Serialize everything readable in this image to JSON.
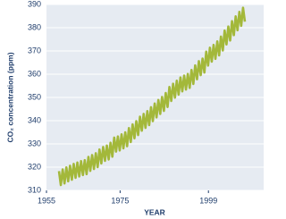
{
  "chart_data": {
    "type": "line",
    "x_label": "YEAR",
    "y_label": "CO₂ concentration (ppm)",
    "x": [
      1958.4,
      1958.9,
      1959.4,
      1959.9,
      1960.4,
      1960.9,
      1961.4,
      1961.9,
      1962.4,
      1962.9,
      1963.4,
      1963.9,
      1964.4,
      1964.9,
      1965.4,
      1965.9,
      1966.4,
      1966.9,
      1967.4,
      1967.9,
      1968.4,
      1968.9,
      1969.4,
      1969.9,
      1970.4,
      1970.9,
      1971.4,
      1971.9,
      1972.4,
      1972.9,
      1973.4,
      1973.9,
      1974.4,
      1974.9,
      1975.4,
      1975.9,
      1976.4,
      1976.9,
      1977.4,
      1977.9,
      1978.4,
      1978.9,
      1979.4,
      1979.9,
      1980.4,
      1980.9,
      1981.4,
      1981.9,
      1982.4,
      1982.9,
      1983.4,
      1983.9,
      1984.4,
      1984.9,
      1985.4,
      1985.9,
      1986.4,
      1986.9,
      1987.4,
      1987.9,
      1988.4,
      1988.9,
      1989.4,
      1989.9,
      1990.4,
      1990.9,
      1991.4,
      1991.9,
      1992.4,
      1992.9,
      1993.4,
      1993.9,
      1994.4,
      1994.9,
      1995.4,
      1995.9,
      1996.4,
      1996.9,
      1997.4,
      1997.9,
      1998.4,
      1998.9,
      1999.4,
      1999.9,
      2000.4,
      2000.9,
      2001.4,
      2001.9,
      2002.4,
      2002.9,
      2003.4,
      2003.9,
      2004.4,
      2004.9,
      2005.4,
      2005.9,
      2006.4,
      2006.9,
      2007.4,
      2007.9,
      2008.4,
      2008.9
    ],
    "series": [
      {
        "name": "CO₂",
        "color": "#a3b83a",
        "values": [
          318.3,
          312.3,
          319,
          313,
          319.9,
          313.9,
          320.6,
          314.6,
          321.4,
          315.4,
          322,
          316,
          322.6,
          316.6,
          323,
          317,
          324.4,
          318.4,
          325.2,
          319.2,
          326,
          320,
          327.6,
          321.6,
          328.7,
          322.7,
          329.3,
          323.3,
          330.5,
          324.5,
          332.7,
          326.7,
          333.2,
          327.2,
          334.1,
          328.1,
          335,
          329,
          336.8,
          330.8,
          338.4,
          332.4,
          339.8,
          333.8,
          341.7,
          335.7,
          342.9,
          336.9,
          344.1,
          338.1,
          345.8,
          339.8,
          347.4,
          341.4,
          348.9,
          342.9,
          350.2,
          344.2,
          351.9,
          345.9,
          354.5,
          348.5,
          355.9,
          349.9,
          357.2,
          351.2,
          358.6,
          352.6,
          359.4,
          353.4,
          360.1,
          354.1,
          361.8,
          355.8,
          363.8,
          357.8,
          365.6,
          359.6,
          366.7,
          360.7,
          369.7,
          363.7,
          371.4,
          365.4,
          372.6,
          366.6,
          374.1,
          368.1,
          376.2,
          370.2,
          378.8,
          372.8,
          380.5,
          374.5,
          382.8,
          376.8,
          384.9,
          378.9,
          386.8,
          380.8,
          388.6,
          382.6
        ]
      }
    ],
    "xlim": [
      1955,
      2014
    ],
    "xticks": [
      1955,
      1975,
      1999
    ],
    "ylim": [
      310,
      390
    ],
    "yticks": [
      310,
      320,
      330,
      340,
      350,
      360,
      370,
      380,
      390
    ],
    "grid": true
  }
}
